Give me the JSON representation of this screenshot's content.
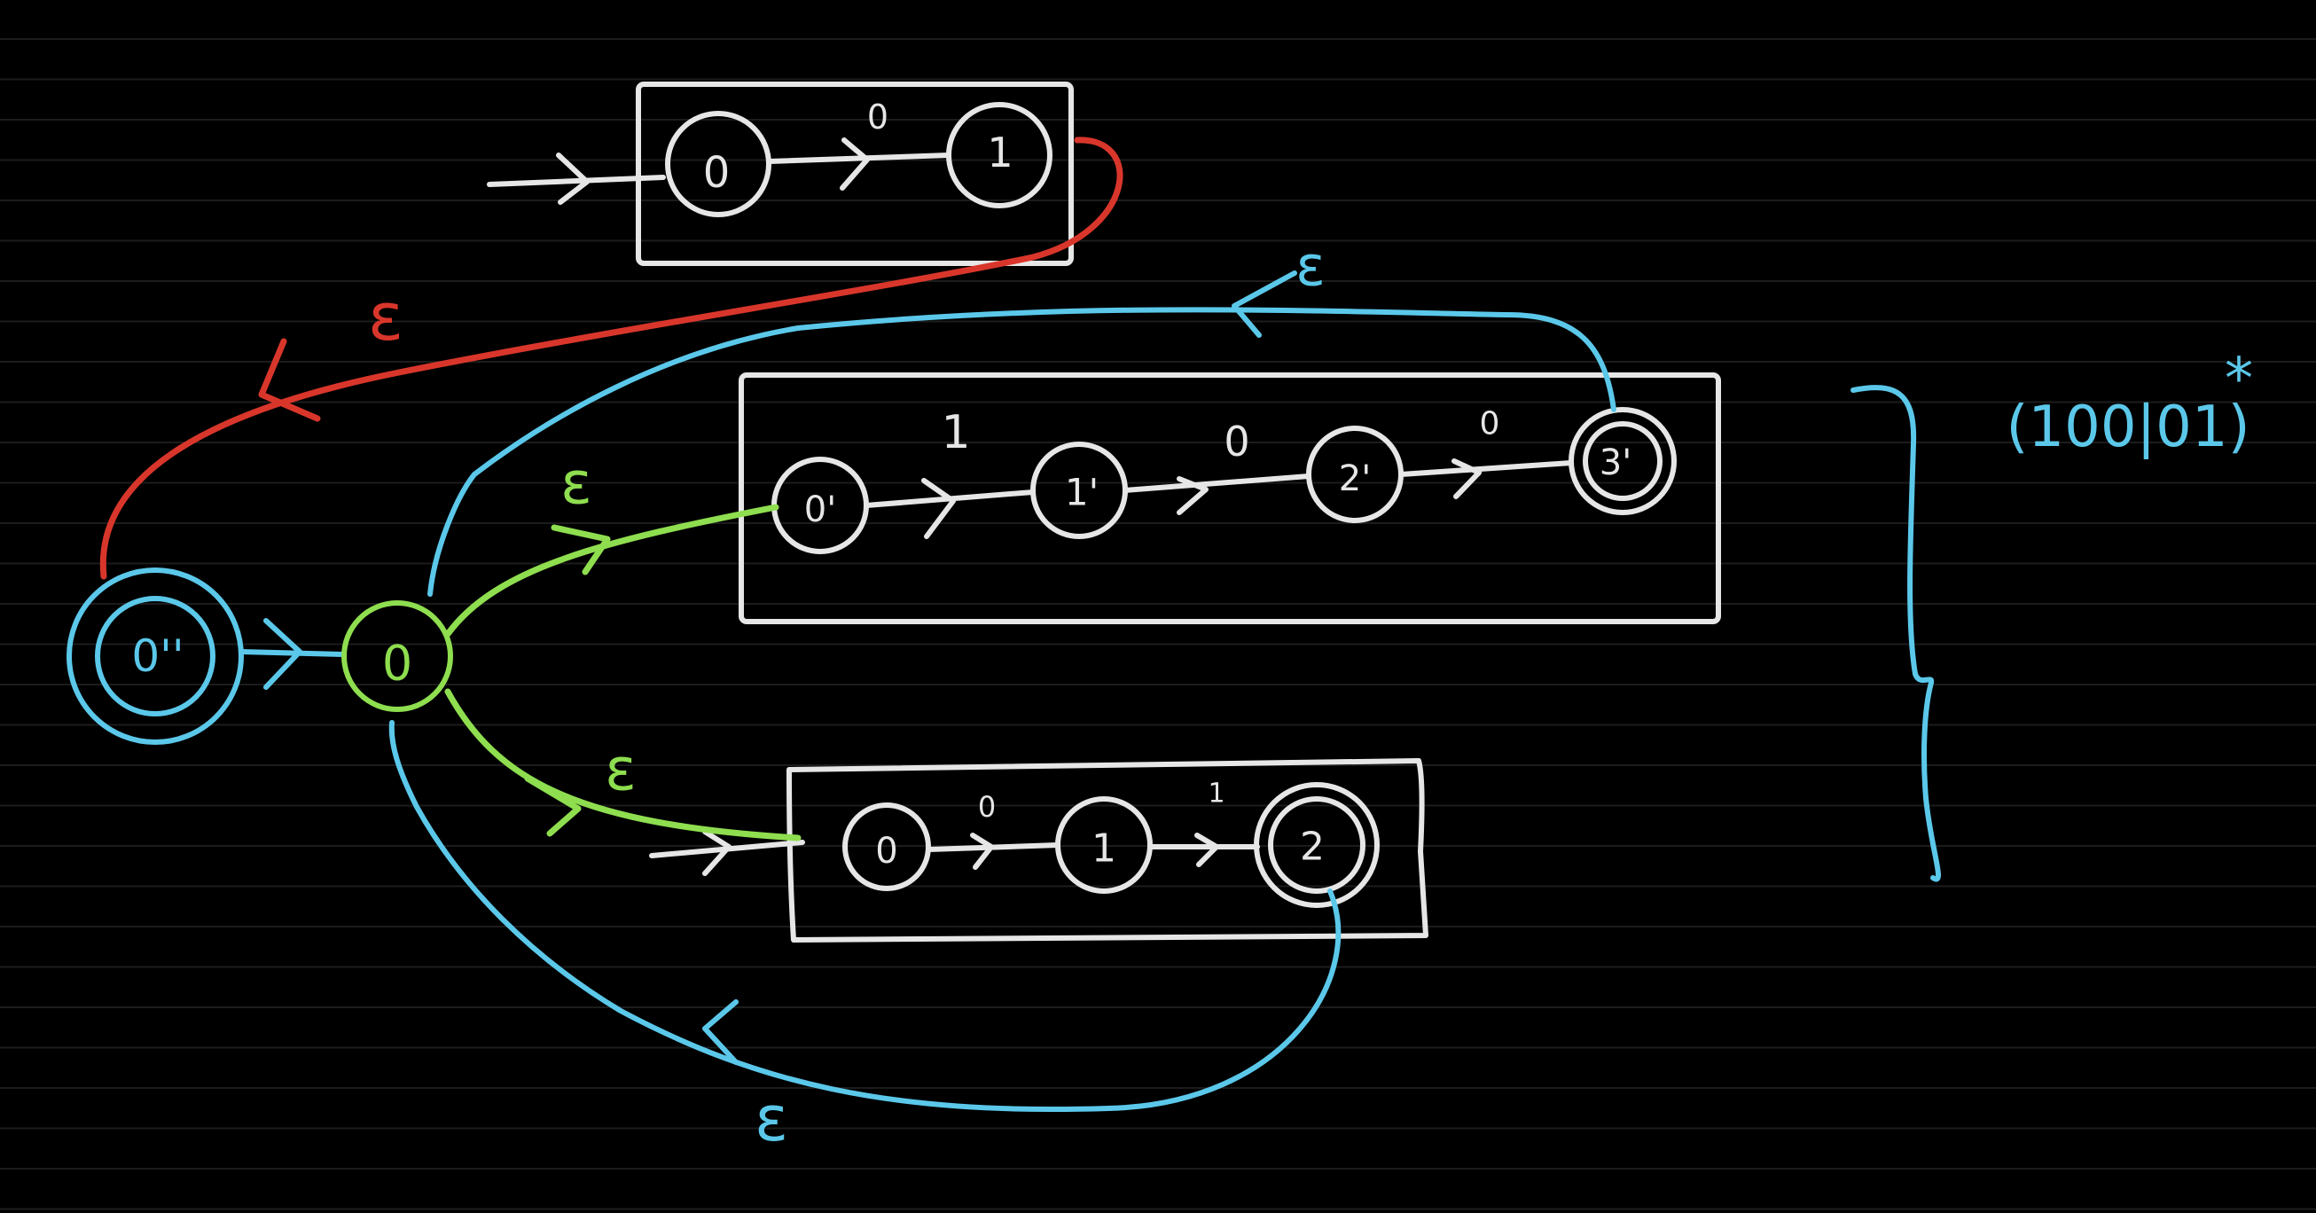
{
  "colors": {
    "background": "#000000",
    "ruled_line": "#1f1f1f",
    "ink_white": "#e6e6e6",
    "ink_cyan": "#5bc8ea",
    "ink_green": "#8ede4f",
    "ink_red": "#d9362b"
  },
  "labels": {
    "epsilon": "ε",
    "regex": "(100|01)",
    "regex_star": "*"
  },
  "top_nfa": {
    "states": [
      "0",
      "1"
    ],
    "symbols": [
      "0"
    ]
  },
  "middle_nfa": {
    "states": [
      "0'",
      "1'",
      "2'",
      "3'"
    ],
    "symbols": [
      "1",
      "0",
      "0"
    ]
  },
  "bottom_nfa": {
    "states": [
      "0",
      "1",
      "2"
    ],
    "symbols": [
      "0",
      "1"
    ]
  },
  "combined": {
    "new_start": "0''",
    "hub": "0"
  }
}
